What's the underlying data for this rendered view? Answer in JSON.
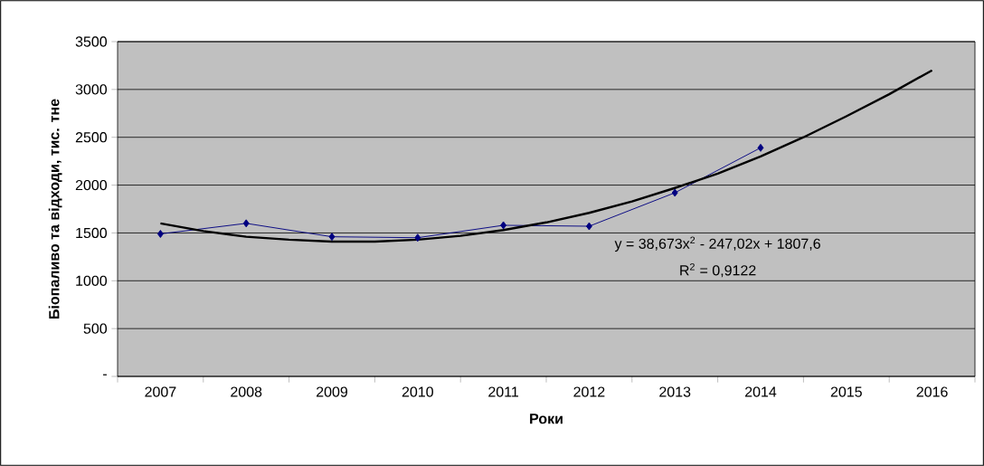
{
  "chart_data": {
    "type": "line",
    "xlabel": "Роки",
    "ylabel": "Біопаливо та відходи, тис. тне",
    "xlim": [
      2006.5,
      2016.5
    ],
    "xticks": [
      {
        "value": 2006.5,
        "label": null
      },
      2007,
      {
        "value": 2007.5,
        "label": null
      },
      2008,
      {
        "value": 2008.5,
        "label": null
      },
      2009,
      {
        "value": 2009.5,
        "label": null
      },
      2010,
      {
        "value": 2010.5,
        "label": null
      },
      2011,
      {
        "value": 2011.5,
        "label": null
      },
      2012,
      {
        "value": 2012.5,
        "label": null
      },
      2013,
      {
        "value": 2013.5,
        "label": null
      },
      2014,
      {
        "value": 2014.5,
        "label": null
      },
      2015,
      {
        "value": 2015.5,
        "label": null
      },
      2016,
      {
        "value": 2016.5,
        "label": null
      }
    ],
    "ylim": [
      0,
      3500
    ],
    "yticks": [
      {
        "value": 0,
        "label": "-"
      },
      500,
      1000,
      1500,
      2000,
      2500,
      3000,
      3500
    ],
    "grid": "y",
    "series": [
      {
        "color": "#000080",
        "marker": "diamond",
        "x": [
          2007,
          2008,
          2009,
          2010,
          2011,
          2012,
          2013,
          2014
        ],
        "values": [
          1490,
          1600,
          1460,
          1450,
          1580,
          1570,
          1920,
          2390
        ]
      },
      {
        "color": "#000000",
        "marker": "none",
        "x": [
          2007,
          2007.5,
          2008,
          2008.5,
          2009,
          2009.5,
          2010,
          2010.5,
          2011,
          2011.5,
          2012,
          2012.5,
          2013,
          2013.5,
          2014,
          2014.5,
          2015,
          2015.5,
          2016
        ],
        "values": [
          1600,
          1520,
          1460,
          1430,
          1410,
          1410,
          1430,
          1470,
          1530,
          1610,
          1710,
          1830,
          1970,
          2120,
          2300,
          2500,
          2720,
          2950,
          3200
        ]
      }
    ],
    "annotations": [
      "y = 38,673x$^{2}$ - 247,02x + 1807,6",
      "R$^{2}$ = 0,9122"
    ]
  }
}
